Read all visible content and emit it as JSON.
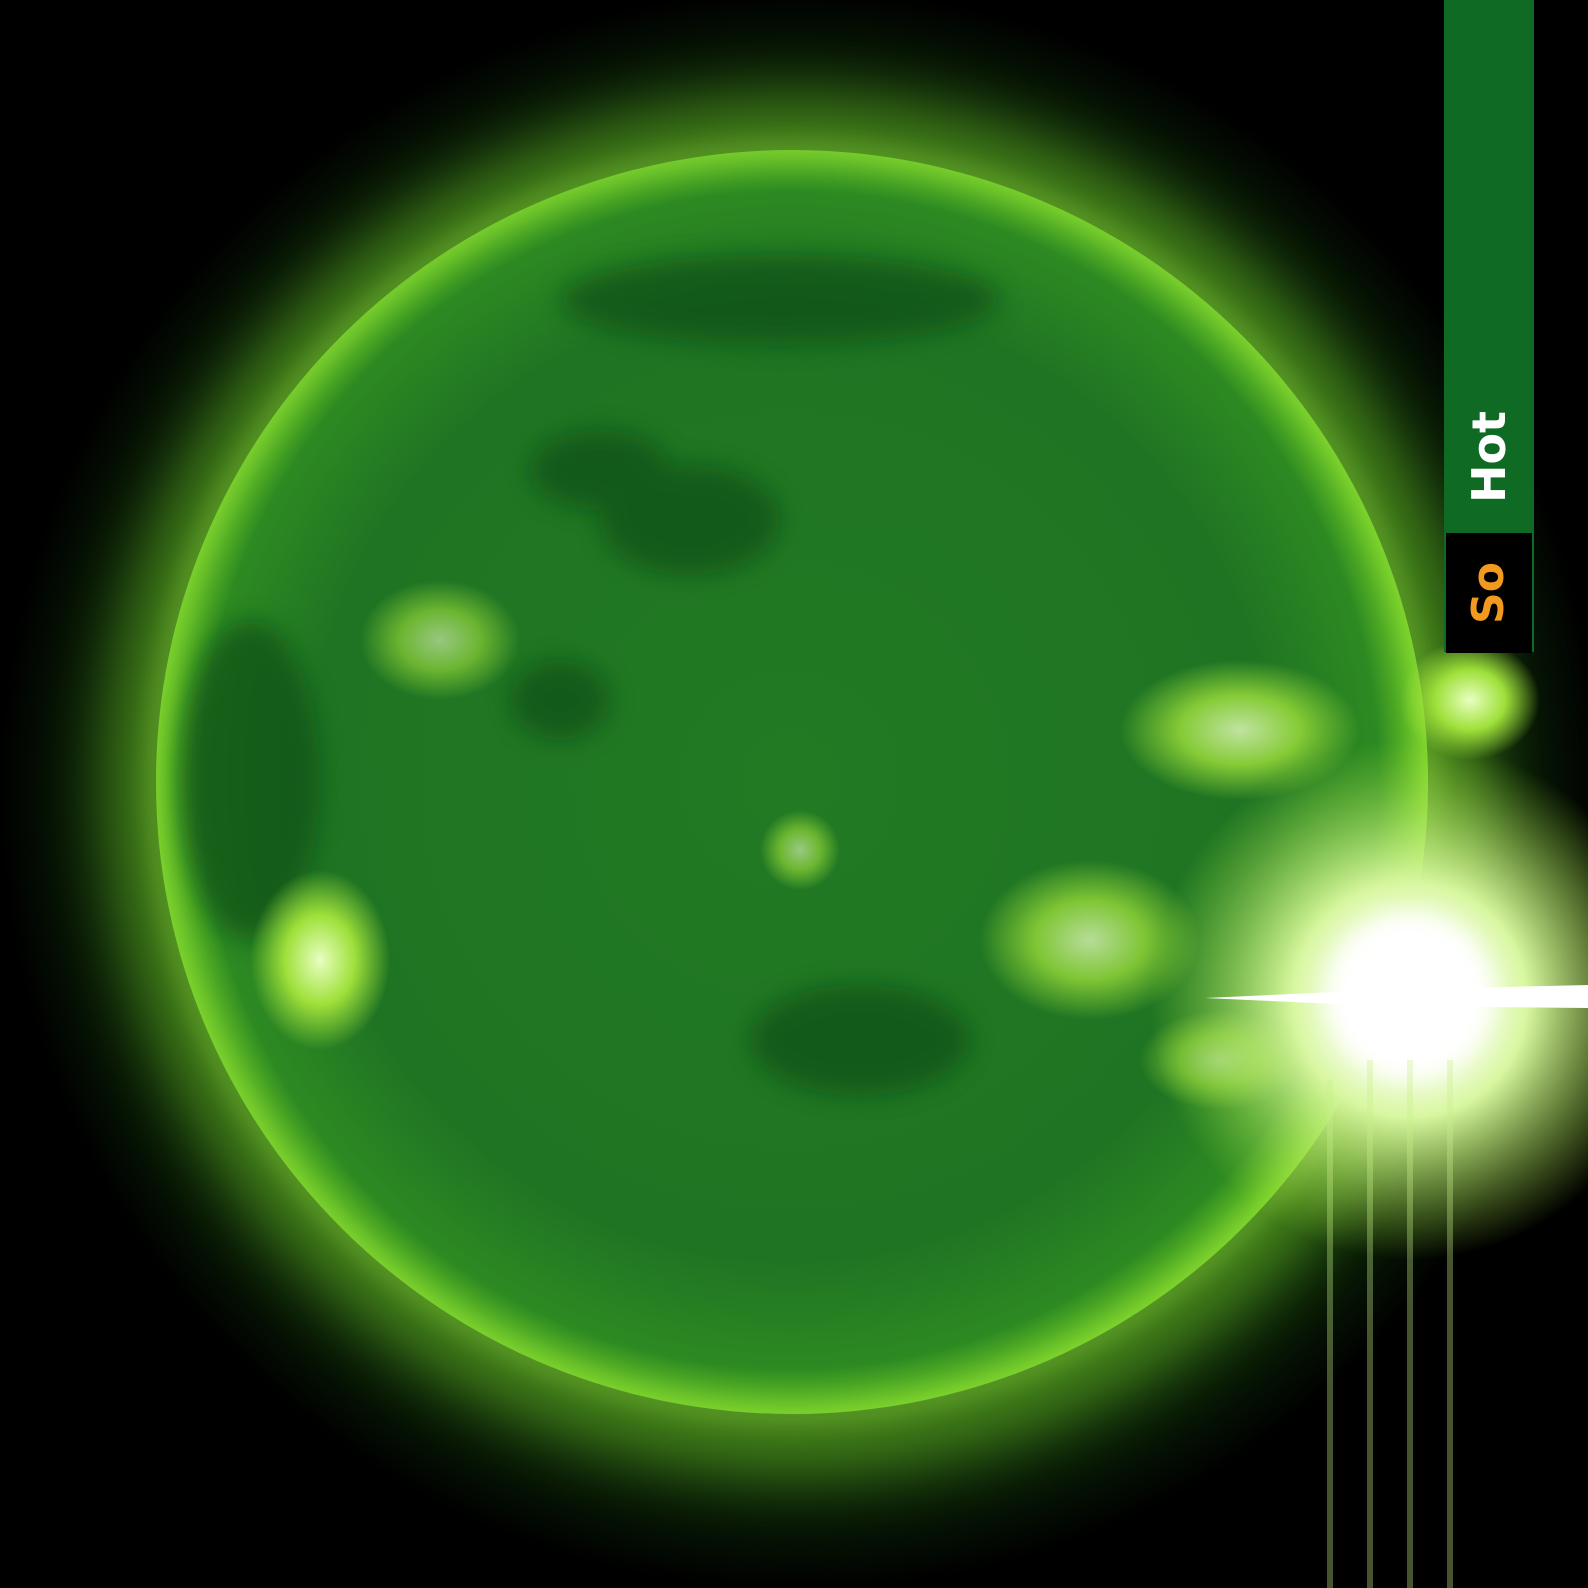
{
  "label": {
    "word_white": "Hot",
    "word_orange": "So"
  },
  "colors": {
    "background": "#000000",
    "corona": "#6fcf1f",
    "disk": "#1f7a24",
    "strip": "#0f6b23",
    "accent_orange": "#f29a1f",
    "flare": "#ffffff"
  }
}
